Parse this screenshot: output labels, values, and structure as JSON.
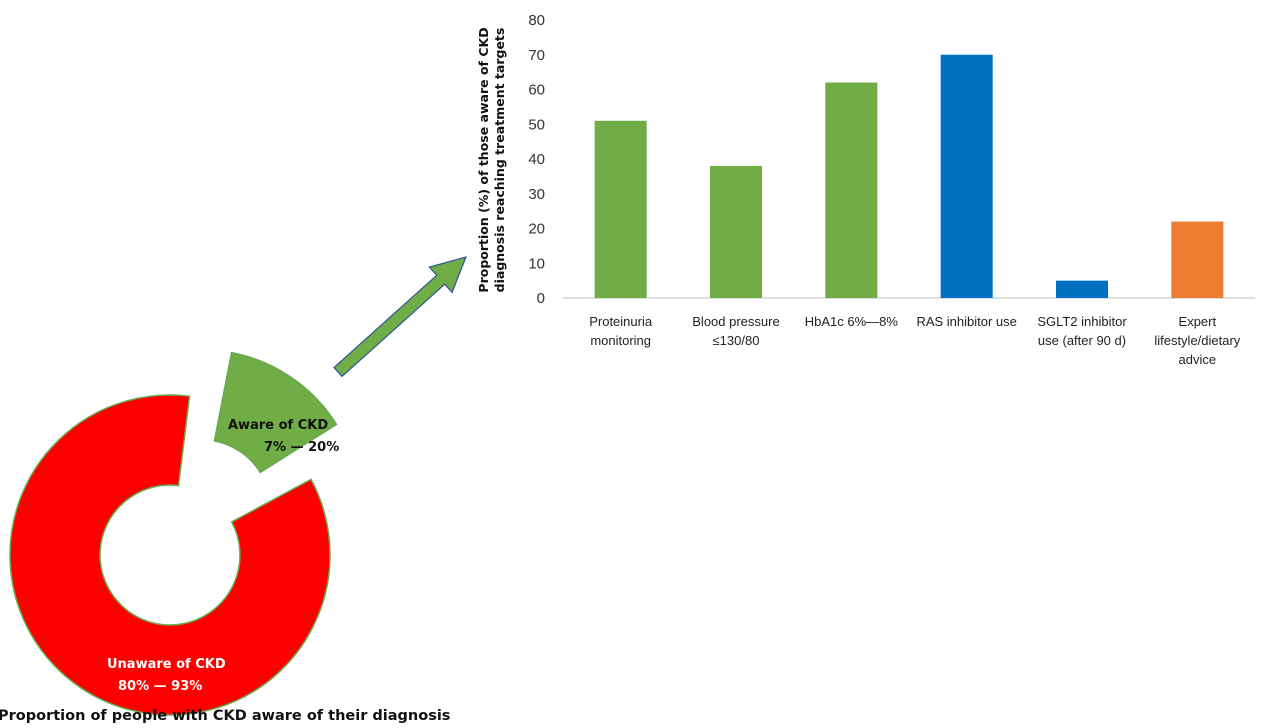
{
  "chart_data": [
    {
      "type": "pie",
      "style": "donut-exploded",
      "caption": "Proportion of people with CKD aware of their diagnosis",
      "slices": [
        {
          "name": "Unaware of CKD",
          "range_label": "80% — 93%",
          "value": 87,
          "color": "#ff0000"
        },
        {
          "name": "Aware of CKD",
          "range_label": "7% — 20%",
          "value": 13,
          "color": "#70ad47"
        }
      ]
    },
    {
      "type": "bar",
      "ylabel_lines": [
        "Proportion (%) of those aware of CKD",
        "diagnosis reaching treatment targets"
      ],
      "ylim": [
        0,
        80
      ],
      "yticks": [
        0,
        10,
        20,
        30,
        40,
        50,
        60,
        70,
        80
      ],
      "grid": false,
      "legend": "none",
      "categories": [
        {
          "lines": [
            "Proteinuria",
            "monitoring"
          ],
          "value": 51,
          "color": "#70ad47"
        },
        {
          "lines": [
            "Blood pressure",
            "≤130/80"
          ],
          "value": 38,
          "color": "#70ad47"
        },
        {
          "lines": [
            "HbA1c 6%—8%"
          ],
          "value": 62,
          "color": "#70ad47"
        },
        {
          "lines": [
            "RAS inhibitor use"
          ],
          "value": 70,
          "color": "#0070c0"
        },
        {
          "lines": [
            "SGLT2 inhibitor",
            "use (after 90 d)"
          ],
          "value": 5,
          "color": "#0070c0"
        },
        {
          "lines": [
            "Expert",
            "lifestyle/dietary",
            "advice"
          ],
          "value": 22,
          "color": "#ed7d31"
        }
      ]
    }
  ],
  "arrow_color": "#70ad47"
}
